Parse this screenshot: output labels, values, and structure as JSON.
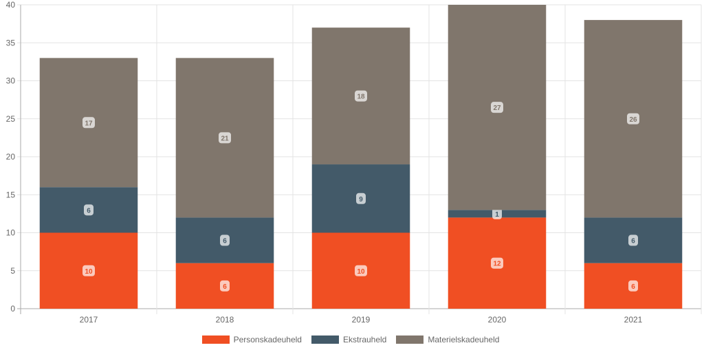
{
  "chart_data": {
    "type": "bar",
    "stacked": true,
    "categories": [
      "2017",
      "2018",
      "2019",
      "2020",
      "2021"
    ],
    "series": [
      {
        "name": "Personskadeuheld",
        "color": "#F04F23",
        "values": [
          10,
          6,
          10,
          12,
          6
        ]
      },
      {
        "name": "Ekstrauheld",
        "color": "#435A69",
        "values": [
          6,
          6,
          9,
          1,
          6
        ]
      },
      {
        "name": "Materielskadeuheld",
        "color": "#80766C",
        "values": [
          17,
          21,
          18,
          27,
          26
        ]
      }
    ],
    "ylim": [
      0,
      40
    ],
    "yticks": [
      "0",
      "5",
      "10",
      "15",
      "20",
      "25",
      "30",
      "35",
      "40"
    ],
    "grid": true,
    "legend": "bottom"
  }
}
